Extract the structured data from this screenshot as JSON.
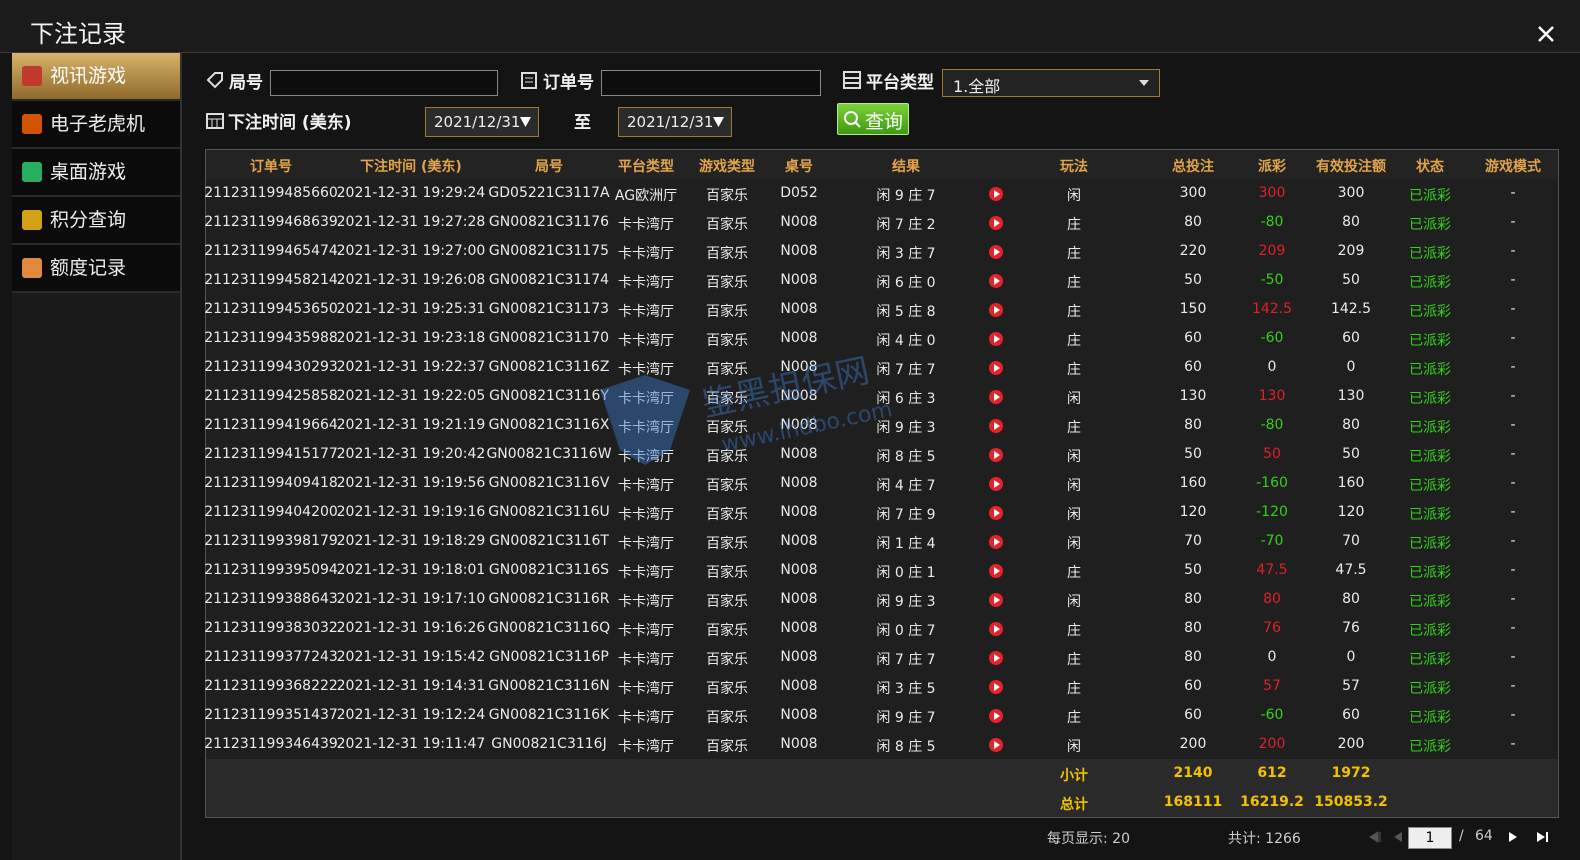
{
  "header": {
    "title": "下注记录"
  },
  "sidebar": [
    "视讯游戏",
    "电子老虎机",
    "桌面游戏",
    "积分查询",
    "额度记录"
  ],
  "filters": {
    "round_label": "局号",
    "order_label": "订单号",
    "platform_label": "平台类型",
    "platform_value": "1.全部",
    "time_label": "下注时间 (美东)",
    "date_from": "2021/12/31",
    "to_label": "至",
    "date_to": "2021/12/31",
    "query_button": "查询"
  },
  "watermark": {
    "name": "鉴黑担保网",
    "url": "www.ihdbo.com"
  },
  "table": {
    "columns": [
      "订单号",
      "下注时间 (美东)",
      "局号",
      "平台类型",
      "游戏类型",
      "桌号",
      "结果",
      "玩法",
      "总投注",
      "派彩",
      "有效投注额",
      "状态",
      "游戏模式"
    ],
    "rows": [
      [
        "211231199485660",
        "2021-12-31 19:29:24",
        "GD05221C3117A",
        "AG欧洲厅",
        "百家乐",
        "D052",
        "闲 9 庄 7",
        "闲",
        300,
        300,
        300,
        "已派彩",
        "-"
      ],
      [
        "211231199468639",
        "2021-12-31 19:27:28",
        "GN00821C31176",
        "卡卡湾厅",
        "百家乐",
        "N008",
        "闲 7 庄 2",
        "庄",
        80,
        -80,
        80,
        "已派彩",
        "-"
      ],
      [
        "211231199465474",
        "2021-12-31 19:27:00",
        "GN00821C31175",
        "卡卡湾厅",
        "百家乐",
        "N008",
        "闲 3 庄 7",
        "庄",
        220,
        209,
        209,
        "已派彩",
        "-"
      ],
      [
        "211231199458214",
        "2021-12-31 19:26:08",
        "GN00821C31174",
        "卡卡湾厅",
        "百家乐",
        "N008",
        "闲 6 庄 0",
        "庄",
        50,
        -50,
        50,
        "已派彩",
        "-"
      ],
      [
        "211231199453650",
        "2021-12-31 19:25:31",
        "GN00821C31173",
        "卡卡湾厅",
        "百家乐",
        "N008",
        "闲 5 庄 8",
        "庄",
        150,
        142.5,
        142.5,
        "已派彩",
        "-"
      ],
      [
        "211231199435988",
        "2021-12-31 19:23:18",
        "GN00821C31170",
        "卡卡湾厅",
        "百家乐",
        "N008",
        "闲 4 庄 0",
        "庄",
        60,
        -60,
        60,
        "已派彩",
        "-"
      ],
      [
        "211231199430293",
        "2021-12-31 19:22:37",
        "GN00821C3116Z",
        "卡卡湾厅",
        "百家乐",
        "N008",
        "闲 7 庄 7",
        "庄",
        60,
        0,
        0,
        "已派彩",
        "-"
      ],
      [
        "211231199425858",
        "2021-12-31 19:22:05",
        "GN00821C3116Y",
        "卡卡湾厅",
        "百家乐",
        "N008",
        "闲 6 庄 3",
        "闲",
        130,
        130,
        130,
        "已派彩",
        "-"
      ],
      [
        "211231199419664",
        "2021-12-31 19:21:19",
        "GN00821C3116X",
        "卡卡湾厅",
        "百家乐",
        "N008",
        "闲 9 庄 3",
        "庄",
        80,
        -80,
        80,
        "已派彩",
        "-"
      ],
      [
        "211231199415177",
        "2021-12-31 19:20:42",
        "GN00821C3116W",
        "卡卡湾厅",
        "百家乐",
        "N008",
        "闲 8 庄 5",
        "闲",
        50,
        50,
        50,
        "已派彩",
        "-"
      ],
      [
        "211231199409418",
        "2021-12-31 19:19:56",
        "GN00821C3116V",
        "卡卡湾厅",
        "百家乐",
        "N008",
        "闲 4 庄 7",
        "闲",
        160,
        -160,
        160,
        "已派彩",
        "-"
      ],
      [
        "211231199404200",
        "2021-12-31 19:19:16",
        "GN00821C3116U",
        "卡卡湾厅",
        "百家乐",
        "N008",
        "闲 7 庄 9",
        "闲",
        120,
        -120,
        120,
        "已派彩",
        "-"
      ],
      [
        "211231199398179",
        "2021-12-31 19:18:29",
        "GN00821C3116T",
        "卡卡湾厅",
        "百家乐",
        "N008",
        "闲 1 庄 4",
        "闲",
        70,
        -70,
        70,
        "已派彩",
        "-"
      ],
      [
        "211231199395094",
        "2021-12-31 19:18:01",
        "GN00821C3116S",
        "卡卡湾厅",
        "百家乐",
        "N008",
        "闲 0 庄 1",
        "庄",
        50,
        47.5,
        47.5,
        "已派彩",
        "-"
      ],
      [
        "211231199388643",
        "2021-12-31 19:17:10",
        "GN00821C3116R",
        "卡卡湾厅",
        "百家乐",
        "N008",
        "闲 9 庄 3",
        "闲",
        80,
        80,
        80,
        "已派彩",
        "-"
      ],
      [
        "211231199383032",
        "2021-12-31 19:16:26",
        "GN00821C3116Q",
        "卡卡湾厅",
        "百家乐",
        "N008",
        "闲 0 庄 7",
        "庄",
        80,
        76,
        76,
        "已派彩",
        "-"
      ],
      [
        "211231199377243",
        "2021-12-31 19:15:42",
        "GN00821C3116P",
        "卡卡湾厅",
        "百家乐",
        "N008",
        "闲 7 庄 7",
        "庄",
        80,
        0,
        0,
        "已派彩",
        "-"
      ],
      [
        "211231199368222",
        "2021-12-31 19:14:31",
        "GN00821C3116N",
        "卡卡湾厅",
        "百家乐",
        "N008",
        "闲 3 庄 5",
        "庄",
        60,
        57,
        57,
        "已派彩",
        "-"
      ],
      [
        "211231199351437",
        "2021-12-31 19:12:24",
        "GN00821C3116K",
        "卡卡湾厅",
        "百家乐",
        "N008",
        "闲 9 庄 7",
        "庄",
        60,
        -60,
        60,
        "已派彩",
        "-"
      ],
      [
        "211231199346439",
        "2021-12-31 19:11:47",
        "GN00821C3116J",
        "卡卡湾厅",
        "百家乐",
        "N008",
        "闲 8 庄 5",
        "闲",
        200,
        200,
        200,
        "已派彩",
        "-"
      ]
    ],
    "subtotal": {
      "label": "小计",
      "total_bet": 2140,
      "payout": 612,
      "valid_bet": 1972
    },
    "total": {
      "label": "总计",
      "total_bet": 168111,
      "payout": 16219.2,
      "valid_bet": 150853.2
    }
  },
  "pagination": {
    "per_page": "每页显示: 20",
    "total": "共计: 1266",
    "page": 1,
    "separator": "/",
    "pages": 64
  }
}
